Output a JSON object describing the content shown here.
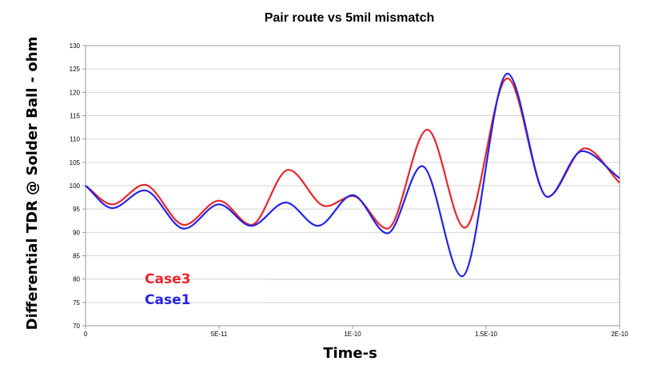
{
  "chart_data": {
    "type": "line",
    "title": "Pair route vs 5mil mismatch",
    "xlabel": "Time-s",
    "ylabel": "Differential TDR @ Solder Ball - ohm",
    "xlim": [
      0,
      2e-10
    ],
    "ylim": [
      70,
      130
    ],
    "x_ticks": [
      {
        "value": 0,
        "label": "0"
      },
      {
        "value": 5e-11,
        "label": "5E-11"
      },
      {
        "value": 1e-10,
        "label": "1E-10"
      },
      {
        "value": 1.5e-10,
        "label": "1.5E-10"
      },
      {
        "value": 2e-10,
        "label": "2E-10"
      }
    ],
    "y_ticks": [
      {
        "value": 70,
        "label": "70"
      },
      {
        "value": 75,
        "label": "75"
      },
      {
        "value": 80,
        "label": "80"
      },
      {
        "value": 85,
        "label": "85"
      },
      {
        "value": 90,
        "label": "90"
      },
      {
        "value": 95,
        "label": "95"
      },
      {
        "value": 100,
        "label": "100"
      },
      {
        "value": 105,
        "label": "105"
      },
      {
        "value": 110,
        "label": "110"
      },
      {
        "value": 115,
        "label": "115"
      },
      {
        "value": 120,
        "label": "120"
      },
      {
        "value": 125,
        "label": "125"
      },
      {
        "value": 130,
        "label": "130"
      }
    ],
    "grid": "horizontal",
    "legend_position": "bottom-left",
    "series": [
      {
        "name": "Case3",
        "color": "#e8252b",
        "x": [
          0,
          1e-11,
          2.2e-11,
          3.7e-11,
          5e-11,
          6.2e-11,
          7.6e-11,
          9e-11,
          1e-10,
          1.13e-10,
          1.28e-10,
          1.42e-10,
          1.58e-10,
          1.73e-10,
          1.87e-10,
          2e-10
        ],
        "values": [
          100,
          96,
          100.2,
          91.6,
          96.8,
          91.6,
          103.4,
          95.6,
          97.8,
          90.8,
          112,
          91,
          123,
          97.6,
          108,
          100.6
        ]
      },
      {
        "name": "Case1",
        "color": "#2323e6",
        "x": [
          0,
          1e-11,
          2.2e-11,
          3.7e-11,
          5e-11,
          6.2e-11,
          7.5e-11,
          8.7e-11,
          1e-10,
          1.13e-10,
          1.26e-10,
          1.41e-10,
          1.58e-10,
          1.73e-10,
          1.86e-10,
          2e-10
        ],
        "values": [
          100,
          95.2,
          99,
          90.8,
          96,
          91.4,
          96.4,
          91.4,
          98,
          89.8,
          104.2,
          80.6,
          124,
          97.6,
          107.4,
          101.6
        ]
      }
    ]
  }
}
